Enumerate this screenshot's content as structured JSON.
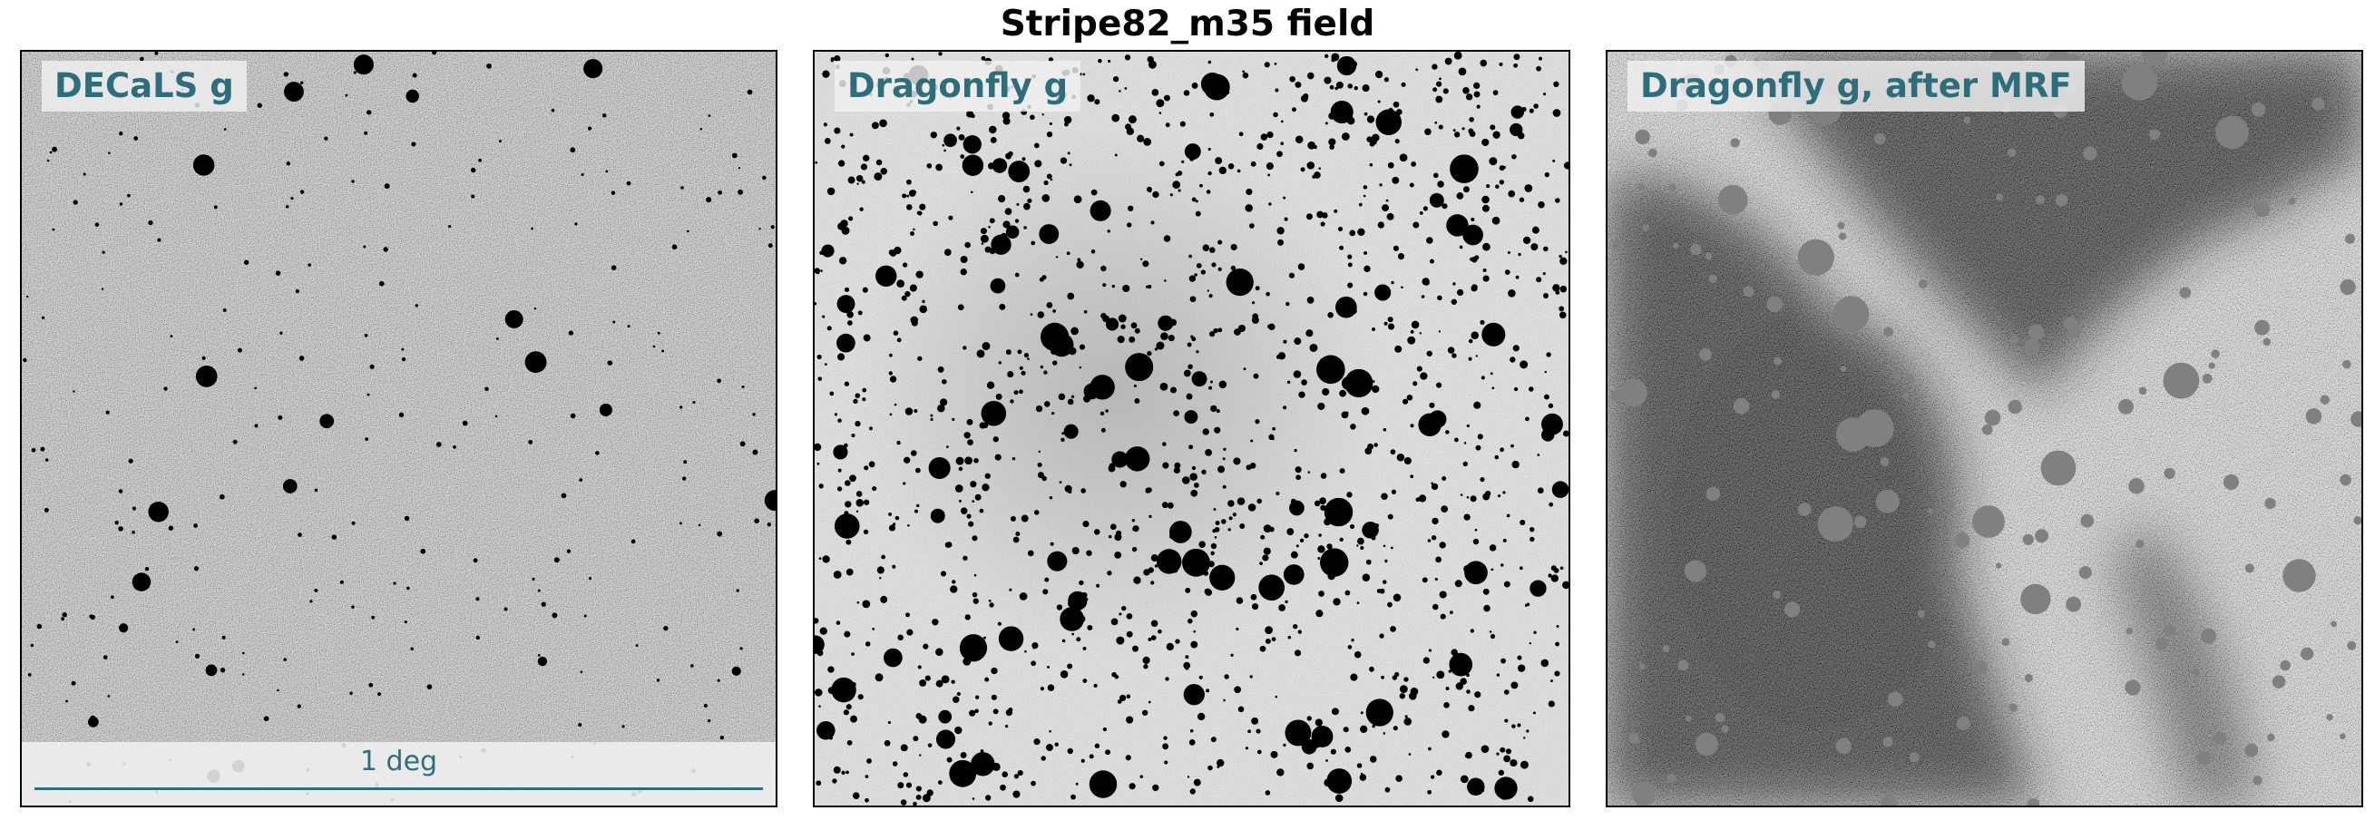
{
  "figure": {
    "title": "Stripe82_m35 field"
  },
  "accent_color": "#2e6e7a",
  "panels": [
    {
      "label": "DECaLS g"
    },
    {
      "label": "Dragonfly g"
    },
    {
      "label": "Dragonfly g, after MRF"
    }
  ],
  "scalebar": {
    "label": "1 deg"
  }
}
